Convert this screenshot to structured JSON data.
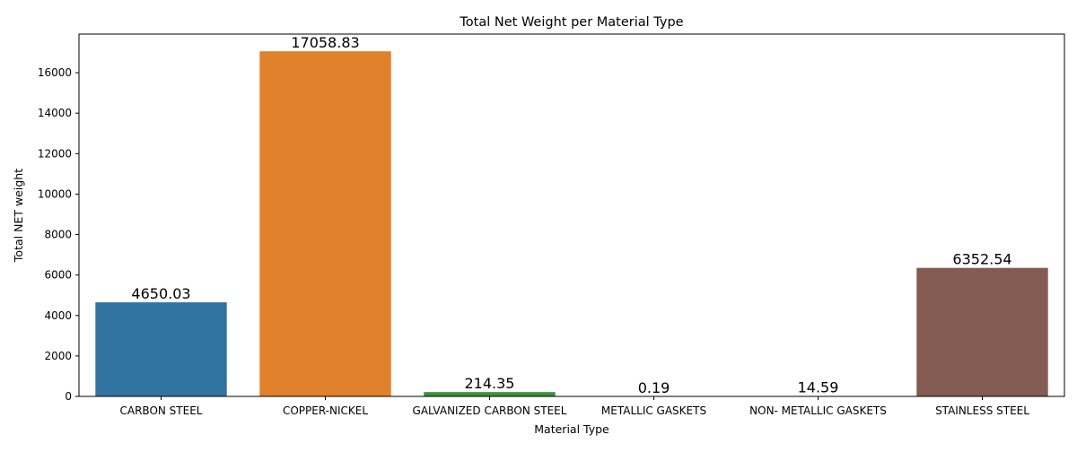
{
  "chart_data": {
    "type": "bar",
    "title": "Total Net Weight per Material Type",
    "xlabel": "Material Type",
    "ylabel": "Total NET weight",
    "categories": [
      "CARBON STEEL",
      "COPPER-NICKEL",
      "GALVANIZED CARBON STEEL",
      "METALLIC GASKETS",
      "NON- METALLIC GASKETS",
      "STAINLESS STEEL"
    ],
    "values": [
      4650.03,
      17058.83,
      214.35,
      0.19,
      14.59,
      6352.54
    ],
    "value_labels": [
      "4650.03",
      "17058.83",
      "214.35",
      "0.19",
      "14.59",
      "6352.54"
    ],
    "colors": [
      "#3274a1",
      "#e1812c",
      "#3a923a",
      "#c03d3e",
      "#9372b2",
      "#845b53"
    ],
    "ylim": [
      0,
      17910
    ],
    "yticks": [
      0,
      2000,
      4000,
      6000,
      8000,
      10000,
      12000,
      14000,
      16000
    ],
    "grid": false,
    "legend": "none"
  }
}
